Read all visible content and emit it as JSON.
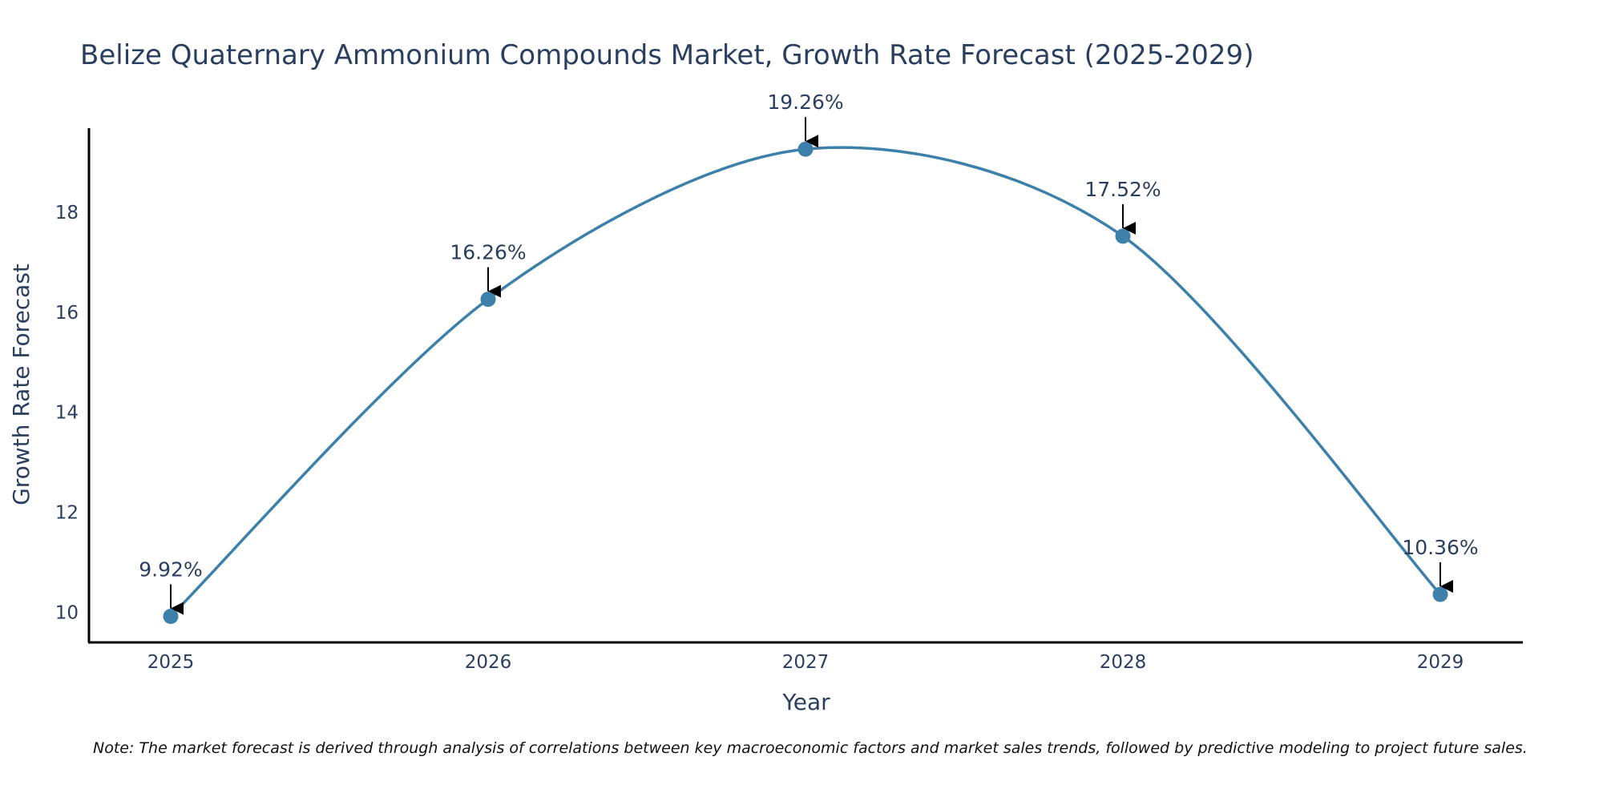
{
  "chart_data": {
    "type": "line",
    "title": "Belize Quaternary Ammonium Compounds Market, Growth Rate Forecast (2025-2029)",
    "xlabel": "Year",
    "ylabel": "Growth Rate Forecast",
    "categories": [
      "2025",
      "2026",
      "2027",
      "2028",
      "2029"
    ],
    "series": [
      {
        "name": "Growth Rate Forecast",
        "values": [
          9.92,
          16.26,
          19.26,
          17.52,
          10.36
        ],
        "labels": [
          "9.92%",
          "16.26%",
          "19.26%",
          "17.52%",
          "10.36%"
        ]
      }
    ],
    "yticks": [
      10,
      12,
      14,
      16,
      18
    ],
    "ytick_labels": [
      "10",
      "12",
      "14",
      "16",
      "18"
    ],
    "ylim": [
      9.4,
      19.68
    ],
    "line_shape": "spline",
    "grid": false,
    "line_color": "#3d80aa",
    "marker_color": "#3d80aa",
    "axis_color": "#000000",
    "text_color": "#2a3f5f",
    "arrow_color": "#000000",
    "note": "Note: The market forecast is derived through analysis of correlations between key macroeconomic factors and market sales trends, followed by predictive modeling to project future sales."
  }
}
